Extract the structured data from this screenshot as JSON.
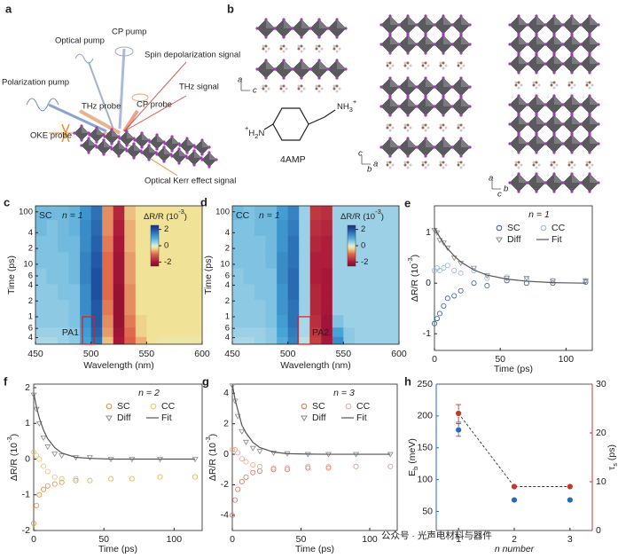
{
  "panel_letters": [
    "a",
    "b"
  ],
  "schematic": {
    "cp_pump": "CP pump",
    "optical_pump": "Optical pump",
    "polarization_pump": "Polarization pump",
    "spin_signal": "Spin depolarization signal",
    "thz_probe": "THz probe",
    "cp_probe": "CP probe",
    "thz_signal": "THz signal",
    "oke_probe": "OKE probe",
    "oke_signal": "Optical Kerr effect signal"
  },
  "structure": {
    "molecule": "4AMP",
    "amine_right": [
      "NH",
      "3",
      "+"
    ],
    "amine_left": [
      "+",
      "H",
      "2",
      "N"
    ],
    "axes1": [
      "a",
      "c"
    ],
    "axes2": [
      "c",
      "a",
      "b"
    ],
    "axes3": [
      "a",
      "b",
      "c"
    ]
  },
  "watermark": "公众号 · 光声电材料与器件",
  "chart_data": [
    {
      "panel": "c",
      "type": "heatmap",
      "label": "SC",
      "annotation": "n = 1",
      "box_label": "PA1",
      "xlabel": "Wavelength (nm)",
      "ylabel": "Time (ps)",
      "yscale": "log",
      "xlim": [
        450,
        600
      ],
      "xticks": [
        450,
        500,
        550,
        600
      ],
      "ylim": [
        0.3,
        130
      ],
      "yticks": [
        100,
        {
          "value": 40,
          "label": "4"
        },
        {
          "value": 20,
          "label": "2"
        },
        10,
        6,
        4,
        2,
        1,
        {
          "value": 0.6,
          "label": "6"
        },
        {
          "value": 0.4,
          "label": "4"
        }
      ],
      "colorbar": {
        "label": [
          "ΔR/R (10",
          "-3",
          ")"
        ],
        "lim": [
          -2.5,
          2.5
        ],
        "ticks": [
          2,
          0,
          -2
        ]
      },
      "x": [
        455,
        465,
        475,
        485,
        495,
        505,
        515,
        525,
        535,
        545,
        555,
        565,
        575,
        585,
        595
      ],
      "y": [
        0.35,
        0.5,
        0.8,
        1.5,
        3,
        6,
        12,
        25,
        50,
        100
      ],
      "z": [
        [
          0.3,
          0.3,
          0.4,
          0.5,
          1.0,
          1.6,
          -0.5,
          -2.0,
          -1.1,
          -0.6,
          -0.3,
          -0.2,
          -0.2,
          -0.2,
          -0.2
        ],
        [
          0.4,
          0.4,
          0.4,
          0.5,
          1.1,
          1.8,
          -0.7,
          -2.1,
          -1.0,
          -0.4,
          -0.3,
          -0.3,
          -0.3,
          -0.3,
          -0.3
        ],
        [
          0.5,
          0.5,
          0.5,
          0.6,
          1.2,
          1.9,
          -0.8,
          -2.2,
          -0.9,
          -0.4,
          -0.3,
          -0.3,
          -0.3,
          -0.3,
          -0.3
        ],
        [
          0.5,
          0.5,
          0.5,
          0.6,
          1.3,
          1.9,
          -0.9,
          -2.2,
          -0.8,
          -0.3,
          -0.3,
          -0.3,
          -0.3,
          -0.3,
          -0.3
        ],
        [
          0.5,
          0.5,
          0.6,
          0.6,
          1.3,
          2.0,
          -1.0,
          -2.2,
          -0.8,
          -0.3,
          -0.3,
          -0.3,
          -0.3,
          -0.3,
          -0.3
        ],
        [
          0.5,
          0.6,
          0.6,
          0.7,
          1.4,
          2.0,
          -1.0,
          -2.1,
          -0.7,
          -0.3,
          -0.3,
          -0.3,
          -0.3,
          -0.3,
          -0.3
        ],
        [
          0.6,
          0.6,
          0.6,
          0.7,
          1.4,
          1.9,
          -1.0,
          -2.1,
          -0.7,
          -0.3,
          -0.3,
          -0.3,
          -0.3,
          -0.3,
          -0.3
        ],
        [
          0.6,
          0.6,
          0.7,
          0.7,
          1.3,
          1.8,
          -0.9,
          -2.0,
          -0.6,
          -0.3,
          -0.3,
          -0.3,
          -0.3,
          -0.3,
          -0.3
        ],
        [
          0.7,
          0.6,
          0.7,
          0.8,
          1.3,
          1.7,
          -0.8,
          -1.9,
          -0.6,
          -0.3,
          -0.3,
          -0.3,
          -0.3,
          -0.3,
          -0.3
        ],
        [
          0.7,
          0.7,
          0.7,
          0.8,
          1.2,
          1.6,
          -0.8,
          -1.8,
          -0.5,
          -0.3,
          -0.3,
          -0.3,
          -0.3,
          -0.3,
          -0.3
        ]
      ]
    },
    {
      "panel": "d",
      "type": "heatmap",
      "label": "CC",
      "annotation": "n = 1",
      "box_label": "PA2",
      "xlabel": "Wavelength (nm)",
      "ylabel": "Time (ps)",
      "yscale": "log",
      "xlim": [
        450,
        600
      ],
      "xticks": [
        450,
        500,
        550,
        600
      ],
      "ylim": [
        0.3,
        130
      ],
      "yticks": [
        100,
        {
          "value": 40,
          "label": "4"
        },
        {
          "value": 20,
          "label": "2"
        },
        10,
        6,
        4,
        2,
        1,
        {
          "value": 0.6,
          "label": "6"
        },
        {
          "value": 0.4,
          "label": "4"
        }
      ],
      "colorbar": {
        "label": [
          "ΔR/R (10",
          "-3",
          ")"
        ],
        "lim": [
          -2.5,
          2.5
        ],
        "ticks": [
          2,
          0,
          -2
        ]
      },
      "x": [
        455,
        465,
        475,
        485,
        495,
        505,
        515,
        525,
        535,
        545,
        555,
        565,
        575,
        585,
        595
      ],
      "y": [
        0.35,
        0.5,
        0.8,
        1.5,
        3,
        6,
        12,
        25,
        50,
        100
      ],
      "z": [
        [
          0.3,
          0.3,
          0.4,
          0.5,
          0.9,
          1.4,
          0.2,
          -1.5,
          -2.0,
          1.3,
          0.5,
          0.4,
          0.4,
          0.4,
          0.4
        ],
        [
          0.4,
          0.4,
          0.4,
          0.5,
          1.0,
          1.5,
          0.3,
          -1.6,
          -2.1,
          1.0,
          0.5,
          0.4,
          0.4,
          0.4,
          0.4
        ],
        [
          0.5,
          0.5,
          0.5,
          0.6,
          1.1,
          1.6,
          0.3,
          -1.7,
          -2.1,
          0.6,
          0.4,
          0.4,
          0.4,
          0.4,
          0.4
        ],
        [
          0.5,
          0.5,
          0.5,
          0.6,
          1.2,
          1.6,
          0.4,
          -1.8,
          -2.0,
          0.4,
          0.4,
          0.4,
          0.4,
          0.4,
          0.4
        ],
        [
          0.5,
          0.5,
          0.6,
          0.6,
          1.2,
          1.7,
          0.4,
          -1.8,
          -2.0,
          0.4,
          0.4,
          0.4,
          0.4,
          0.4,
          0.4
        ],
        [
          0.5,
          0.6,
          0.6,
          0.6,
          1.3,
          1.7,
          0.4,
          -1.9,
          -2.0,
          0.4,
          0.4,
          0.4,
          0.4,
          0.4,
          0.4
        ],
        [
          0.6,
          0.6,
          0.6,
          0.7,
          1.3,
          1.6,
          0.4,
          -1.9,
          -1.9,
          0.4,
          0.4,
          0.4,
          0.4,
          0.4,
          0.4
        ],
        [
          0.6,
          0.6,
          0.6,
          0.7,
          1.2,
          1.6,
          0.4,
          -1.8,
          -1.9,
          0.4,
          0.4,
          0.4,
          0.4,
          0.4,
          0.4
        ],
        [
          0.6,
          0.6,
          0.7,
          0.7,
          1.2,
          1.5,
          0.4,
          -1.7,
          -1.8,
          0.4,
          0.4,
          0.4,
          0.4,
          0.4,
          0.4
        ],
        [
          0.7,
          0.6,
          0.7,
          0.7,
          1.1,
          1.4,
          0.4,
          -1.6,
          -1.7,
          0.4,
          0.4,
          0.4,
          0.4,
          0.4,
          0.4
        ]
      ]
    },
    {
      "panel": "e",
      "type": "scatter",
      "annotation": "n = 1",
      "legend": "upper right",
      "xlabel": "Time (ps)",
      "ylabel": [
        "ΔR/R (10",
        "-3",
        ")"
      ],
      "xlim": [
        0,
        120
      ],
      "xticks": [
        0,
        50,
        100
      ],
      "ylim": [
        -1.33,
        1.53
      ],
      "yticks": [
        -1,
        0,
        1
      ],
      "x": [
        0,
        2,
        4,
        7,
        10,
        15,
        20,
        30,
        40,
        55,
        70,
        90,
        115
      ],
      "series": [
        {
          "name": "SC",
          "color": "#2a5aa8",
          "marker": "circle",
          "values": [
            -0.8,
            -0.7,
            -0.6,
            -0.45,
            -0.3,
            -0.25,
            -0.15,
            0.0,
            -0.05,
            0.05,
            0.0,
            0.0,
            0.02
          ]
        },
        {
          "name": "CC",
          "color": "#8fb8e0",
          "marker": "circle",
          "values": [
            0.25,
            0.3,
            0.25,
            0.3,
            0.35,
            0.25,
            0.2,
            0.25,
            0.1,
            0.12,
            0.08,
            0.05,
            0.05
          ]
        },
        {
          "name": "Diff",
          "color": "#8a8a8a",
          "marker": "triangle",
          "values": [
            1.05,
            1.0,
            0.85,
            0.8,
            0.7,
            0.5,
            0.4,
            0.3,
            0.15,
            0.1,
            0.1,
            0.05,
            0.05
          ]
        },
        {
          "name": "Fit",
          "color": "#555555",
          "marker": "line",
          "values": [
            1.1,
            1.0,
            0.91,
            0.79,
            0.68,
            0.54,
            0.42,
            0.26,
            0.16,
            0.08,
            0.04,
            0.01,
            0.0
          ]
        }
      ]
    },
    {
      "panel": "f",
      "type": "scatter",
      "annotation": "n = 2",
      "legend": "upper right",
      "xlabel": "Time (ps)",
      "ylabel": [
        "ΔR/R (10",
        "-3",
        ")"
      ],
      "xlim": [
        0,
        120
      ],
      "xticks": [
        0,
        50,
        100
      ],
      "ylim": [
        -2,
        2.1
      ],
      "yticks": [
        -2,
        -1,
        0,
        1,
        2
      ],
      "x": [
        0,
        2,
        4,
        7,
        10,
        15,
        20,
        30,
        40,
        55,
        70,
        90,
        115
      ],
      "series": [
        {
          "name": "SC",
          "color": "#f08a30",
          "marker": "circle",
          "values": [
            -1.8,
            -1.3,
            -1.0,
            -0.85,
            -0.75,
            -0.7,
            -0.65,
            -0.6,
            -0.6,
            -0.55,
            -0.55,
            -0.5,
            -0.5
          ]
        },
        {
          "name": "CC",
          "color": "#f5c060",
          "marker": "circle",
          "values": [
            0.2,
            0.1,
            0.0,
            -0.2,
            -0.35,
            -0.5,
            -0.55,
            -0.55,
            -0.6,
            -0.55,
            -0.55,
            -0.5,
            -0.5
          ]
        },
        {
          "name": "Diff",
          "color": "#8a8a8a",
          "marker": "triangle",
          "values": [
            1.8,
            1.4,
            1.0,
            0.6,
            0.35,
            0.15,
            0.1,
            0.05,
            0.05,
            0,
            0,
            0,
            0
          ]
        },
        {
          "name": "Fit",
          "color": "#555555",
          "marker": "line",
          "values": [
            1.85,
            1.46,
            1.15,
            0.81,
            0.57,
            0.32,
            0.17,
            0.05,
            0.02,
            0,
            0,
            0,
            0
          ]
        }
      ]
    },
    {
      "panel": "g",
      "type": "scatter",
      "annotation": "n = 3",
      "legend": "upper right",
      "xlabel": "Time (ps)",
      "ylabel": [
        "ΔR/R (10",
        "-3",
        ")"
      ],
      "xlim": [
        0,
        120
      ],
      "xticks": [
        0,
        50,
        100
      ],
      "ylim": [
        -5,
        4.6
      ],
      "yticks": [
        -4,
        -2,
        0,
        2,
        4
      ],
      "x": [
        0,
        2,
        4,
        7,
        10,
        15,
        20,
        30,
        40,
        55,
        70,
        90,
        115
      ],
      "series": [
        {
          "name": "SC",
          "color": "#e07050",
          "marker": "circle",
          "values": [
            -4,
            -3,
            -2.3,
            -1.8,
            -1.5,
            -1.2,
            -1.1,
            -1,
            -1,
            -0.9,
            -0.9,
            -0.8,
            -0.8
          ]
        },
        {
          "name": "CC",
          "color": "#f0a890",
          "marker": "circle",
          "values": [
            0.3,
            0.3,
            0.1,
            -0.3,
            -0.5,
            -0.7,
            -0.8,
            -0.9,
            -0.9,
            -0.8,
            -0.8,
            -0.8,
            -0.8
          ]
        },
        {
          "name": "Diff",
          "color": "#8a8a8a",
          "marker": "triangle",
          "values": [
            4.5,
            3.5,
            2.5,
            1.5,
            0.8,
            0.4,
            0.2,
            0.1,
            0.05,
            0,
            0,
            0,
            0
          ]
        },
        {
          "name": "Fit",
          "color": "#555555",
          "marker": "line",
          "values": [
            4.6,
            3.6,
            2.9,
            1.9,
            1.4,
            0.78,
            0.44,
            0.14,
            0.04,
            0.01,
            0,
            0,
            0
          ]
        }
      ]
    },
    {
      "panel": "h",
      "type": "errorbar",
      "xlabel": "n number",
      "ylabel": [
        "E",
        "b",
        " (meV)"
      ],
      "y2label": [
        "τ",
        "s",
        " (ps)"
      ],
      "xlim": [
        0.6,
        3.4
      ],
      "xticks": [
        1,
        2,
        3
      ],
      "ylim": [
        20,
        250
      ],
      "yticks": [
        50,
        100,
        150,
        200,
        250
      ],
      "y2lim": [
        0,
        30
      ],
      "y2ticks": [
        0,
        10,
        20,
        30
      ],
      "x": [
        1,
        2,
        3
      ],
      "series": [
        {
          "color": "#2a6ab8",
          "axis": "y",
          "values": [
            178,
            68,
            68
          ],
          "errors": [
            10,
            2,
            2
          ]
        },
        {
          "color": "#c0392b",
          "axis": "y2",
          "dashed": true,
          "values": [
            24,
            9,
            9
          ],
          "errors": [
            1.8,
            0.3,
            0.3
          ]
        }
      ]
    }
  ]
}
